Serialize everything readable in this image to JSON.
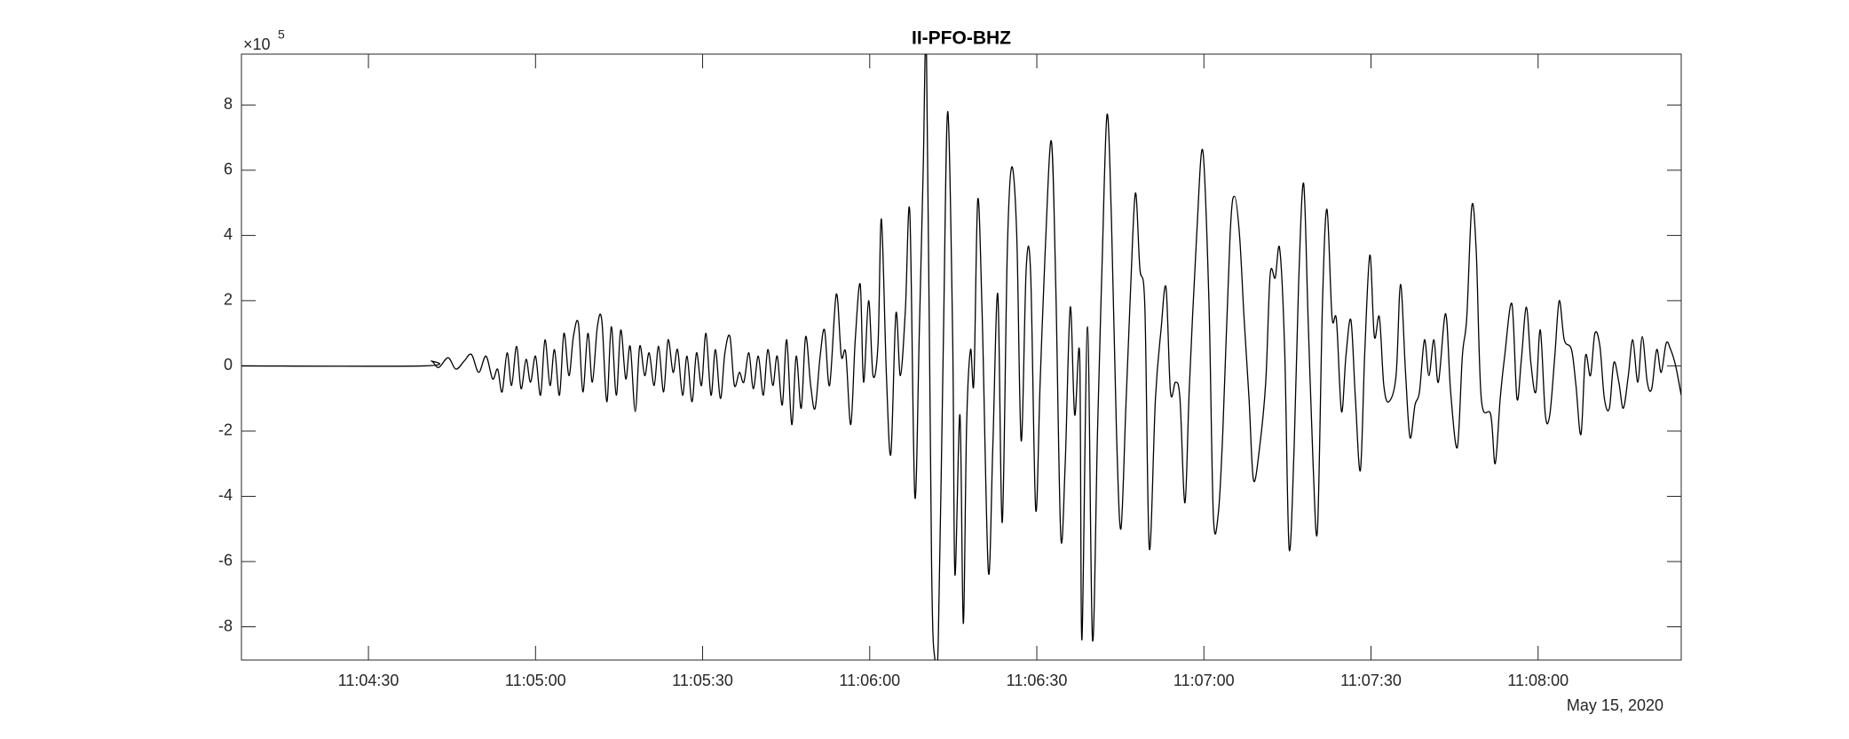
{
  "chart_data": {
    "type": "line",
    "title": "II-PFO-BHZ",
    "color": "#000000",
    "y_multiplier": "×10",
    "y_exponent": "5",
    "x_date_label": "May 15, 2020",
    "xlim": [
      "11:04:07.2",
      "11:08:25.7"
    ],
    "xticks": [
      "11:04:30",
      "11:05:00",
      "11:05:30",
      "11:06:00",
      "11:06:30",
      "11:07:00",
      "11:07:30",
      "11:08:00"
    ],
    "ylim": [
      -9.02,
      9.56
    ],
    "yticks": [
      -8,
      -6,
      -4,
      -2,
      0,
      2,
      4,
      6,
      8
    ],
    "x": [
      "11:04:07.2",
      "11:04:40.0",
      "11:04:41.3",
      "11:04:42.6",
      "11:04:44.3",
      "11:04:45.7",
      "11:04:47.2",
      "11:04:48.5",
      "11:04:49.8",
      "11:04:51.1",
      "11:04:52.3",
      "11:04:53.2",
      "11:04:54.0",
      "11:04:54.9",
      "11:04:55.7",
      "11:04:56.6",
      "11:04:57.4",
      "11:04:58.3",
      "11:04:59.1",
      "11:05:00.0",
      "11:05:00.9",
      "11:05:01.7",
      "11:05:02.6",
      "11:05:03.4",
      "11:05:04.3",
      "11:05:05.1",
      "11:05:06.0",
      "11:05:06.8",
      "11:05:07.7",
      "11:05:08.5",
      "11:05:09.4",
      "11:05:10.2",
      "11:05:11.1",
      "11:05:11.9",
      "11:05:12.8",
      "11:05:13.6",
      "11:05:14.5",
      "11:05:15.3",
      "11:05:16.2",
      "11:05:17.0",
      "11:05:17.9",
      "11:05:18.7",
      "11:05:19.6",
      "11:05:20.4",
      "11:05:21.3",
      "11:05:22.1",
      "11:05:23.0",
      "11:05:23.8",
      "11:05:24.7",
      "11:05:25.5",
      "11:05:26.4",
      "11:05:27.2",
      "11:05:28.1",
      "11:05:28.9",
      "11:05:29.8",
      "11:05:30.6",
      "11:05:31.5",
      "11:05:32.3",
      "11:05:33.2",
      "11:05:34.0",
      "11:05:34.9",
      "11:05:35.7",
      "11:05:36.6",
      "11:05:37.4",
      "11:05:38.3",
      "11:05:39.1",
      "11:05:40.0",
      "11:05:40.9",
      "11:05:41.7",
      "11:05:42.6",
      "11:05:43.4",
      "11:05:44.3",
      "11:05:45.1",
      "11:05:46.0",
      "11:05:46.8",
      "11:05:47.7",
      "11:05:48.5",
      "11:05:49.4",
      "11:05:50.2",
      "11:05:51.1",
      "11:05:51.9",
      "11:05:52.8",
      "11:05:54.0",
      "11:05:54.9",
      "11:05:55.7",
      "11:05:56.6",
      "11:05:57.4",
      "11:05:58.3",
      "11:05:58.9",
      "11:05:59.8",
      "11:06:00.6",
      "11:06:01.5",
      "11:06:02.1",
      "11:06:03.0",
      "11:06:03.8",
      "11:06:04.7",
      "11:06:05.5",
      "11:06:06.4",
      "11:06:07.2",
      "11:06:08.1",
      "11:06:08.9",
      "11:06:09.6",
      "11:06:10.2",
      "11:06:11.1",
      "11:06:11.7",
      "11:06:12.3",
      "11:06:13.2",
      "11:06:14.0",
      "11:06:14.9",
      "11:06:15.3",
      "11:06:16.2",
      "11:06:16.8",
      "11:06:17.4",
      "11:06:18.1",
      "11:06:18.7",
      "11:06:19.4",
      "11:06:20.2",
      "11:06:21.3",
      "11:06:22.1",
      "11:06:23.0",
      "11:06:23.8",
      "11:06:24.7",
      "11:06:25.5",
      "11:06:26.4",
      "11:06:27.2",
      "11:06:28.1",
      "11:06:28.9",
      "11:06:29.8",
      "11:06:30.6",
      "11:06:31.5",
      "11:06:32.6",
      "11:06:33.4",
      "11:06:34.3",
      "11:06:35.1",
      "11:06:36.0",
      "11:06:36.8",
      "11:06:37.7",
      "11:06:38.1",
      "11:06:39.1",
      "11:06:40.0",
      "11:06:40.9",
      "11:06:41.7",
      "11:06:42.6",
      "11:06:43.4",
      "11:06:44.3",
      "11:06:45.1",
      "11:06:46.0",
      "11:06:46.8",
      "11:06:47.7",
      "11:06:48.5",
      "11:06:49.4",
      "11:06:50.2",
      "11:06:51.3",
      "11:06:52.3",
      "11:06:53.2",
      "11:06:54.0",
      "11:06:54.9",
      "11:06:55.7",
      "11:06:56.6",
      "11:06:57.4",
      "11:06:58.7",
      "11:06:59.8",
      "11:07:00.9",
      "11:07:01.7",
      "11:07:02.6",
      "11:07:03.4",
      "11:07:04.7",
      "11:07:05.5",
      "11:07:06.4",
      "11:07:07.2",
      "11:07:08.1",
      "11:07:08.9",
      "11:07:10.0",
      "11:07:11.1",
      "11:07:11.9",
      "11:07:12.8",
      "11:07:13.6",
      "11:07:14.5",
      "11:07:15.3",
      "11:07:16.2",
      "11:07:17.0",
      "11:07:17.9",
      "11:07:18.7",
      "11:07:19.6",
      "11:07:20.4",
      "11:07:21.3",
      "11:07:22.1",
      "11:07:23.0",
      "11:07:23.8",
      "11:07:24.7",
      "11:07:25.5",
      "11:07:26.4",
      "11:07:27.2",
      "11:07:28.1",
      "11:07:28.9",
      "11:07:29.8",
      "11:07:30.6",
      "11:07:31.5",
      "11:07:32.3",
      "11:07:33.2",
      "11:07:34.5",
      "11:07:35.3",
      "11:07:36.2",
      "11:07:37.0",
      "11:07:37.9",
      "11:07:38.7",
      "11:07:39.6",
      "11:07:40.4",
      "11:07:41.3",
      "11:07:42.1",
      "11:07:43.4",
      "11:07:44.3",
      "11:07:45.5",
      "11:07:46.4",
      "11:07:47.2",
      "11:07:48.1",
      "11:07:48.9",
      "11:07:49.8",
      "11:07:51.5",
      "11:07:52.3",
      "11:07:53.2",
      "11:07:54.0",
      "11:07:55.3",
      "11:07:56.2",
      "11:07:57.0",
      "11:07:57.9",
      "11:07:58.7",
      "11:07:59.6",
      "11:08:00.4",
      "11:08:01.3",
      "11:08:02.1",
      "11:08:03.0",
      "11:08:03.8",
      "11:08:04.7",
      "11:08:06.0",
      "11:08:06.8",
      "11:08:07.7",
      "11:08:08.5",
      "11:08:09.4",
      "11:08:10.2",
      "11:08:11.1",
      "11:08:11.9",
      "11:08:12.8",
      "11:08:13.6",
      "11:08:14.5",
      "11:08:15.3",
      "11:08:16.2",
      "11:08:17.0",
      "11:08:17.9",
      "11:08:18.7",
      "11:08:19.6",
      "11:08:20.4",
      "11:08:21.3",
      "11:08:22.1",
      "11:08:23.0",
      "11:08:23.8",
      "11:08:24.7",
      "11:08:25.7"
    ],
    "values": [
      0,
      0,
      0.15,
      -0.05,
      0.25,
      -0.1,
      0.15,
      0.35,
      -0.2,
      0.3,
      -0.4,
      -0.1,
      -0.8,
      0.4,
      -0.6,
      0.6,
      -0.7,
      0.2,
      -0.5,
      0.3,
      -0.9,
      0.8,
      -0.6,
      0.5,
      -0.9,
      1.0,
      -0.3,
      0.9,
      1.3,
      -0.8,
      1.0,
      -0.5,
      1.2,
      1.4,
      -1.1,
      1.2,
      -0.9,
      1.1,
      -0.4,
      0.6,
      -1.4,
      0.6,
      -0.3,
      0.4,
      -0.6,
      0.6,
      -0.8,
      0.8,
      -0.2,
      0.5,
      -0.9,
      0.3,
      -1.1,
      0.4,
      -0.6,
      1.0,
      -0.9,
      0.5,
      -1.0,
      0.4,
      0.9,
      -0.6,
      -0.2,
      -0.5,
      0.4,
      -0.7,
      0.3,
      -0.9,
      0.5,
      -0.6,
      0.3,
      -1.2,
      0.8,
      -1.8,
      0.3,
      -1.3,
      0.9,
      -0.6,
      -1.3,
      0.3,
      1.1,
      -0.6,
      2.2,
      0.3,
      0.4,
      -1.8,
      0.8,
      2.5,
      -0.5,
      2.0,
      -0.3,
      0.7,
      4.5,
      -0.3,
      -2.7,
      1.6,
      -0.3,
      1.7,
      4.7,
      -4.0,
      1.0,
      6.0,
      9.5,
      -6,
      -9.0,
      -8.5,
      0.5,
      7.8,
      0.8,
      -6.4,
      -1.5,
      -7.9,
      -1.8,
      0.5,
      -0.5,
      5.1,
      1.5,
      -6.3,
      -2.5,
      2.2,
      -4.8,
      3.5,
      6.1,
      4.0,
      -2.3,
      3.0,
      2.8,
      -4.4,
      -0.5,
      3.5,
      6.9,
      2.5,
      -5.2,
      -3,
      1.8,
      -1.5,
      0.3,
      -8.4,
      1.2,
      -8.4,
      -2,
      3.0,
      7.7,
      4.5,
      -2.0,
      -5.0,
      -1.2,
      2.2,
      5.3,
      3,
      1.8,
      -5.6,
      -1.0,
      1.1,
      2.4,
      -0.8,
      -0.5,
      -1.0,
      -4.2,
      -0.6,
      4.0,
      6.6,
      2.0,
      -4.6,
      -4.5,
      -2.0,
      4.0,
      5.2,
      4.0,
      1.5,
      -1.0,
      -3.5,
      -2.5,
      -0.5,
      2.8,
      2.7,
      3.6,
      0.5,
      -5.6,
      -2.5,
      2.5,
      5.6,
      1.5,
      -3.0,
      -5.0,
      2.0,
      4.8,
      1.5,
      1.4,
      -1.4,
      0.3,
      1.4,
      -1.0,
      -3.2,
      0.5,
      3.4,
      0.9,
      1.5,
      -0.6,
      -1.1,
      -0.3,
      2.5,
      -0.2,
      -2.2,
      -1.2,
      -0.8,
      0.8,
      -0.3,
      0.8,
      -0.5,
      1.6,
      -0.8,
      -2.5,
      0.3,
      1.5,
      4.9,
      3.5,
      -1,
      -1.5,
      -3.0,
      -1.0,
      0.3,
      1.9,
      -1.0,
      0.2,
      1.8,
      0.1,
      -0.8,
      1.1,
      -1.5,
      -1.5,
      0.3,
      2.0,
      0.8,
      0.5,
      -0.6,
      -2.1,
      0.3,
      -0.3,
      1.0,
      0.6,
      -1.0,
      -1.3,
      0.1,
      -0.5,
      -1.3,
      -0.3,
      0.8,
      -0.5,
      0.9,
      -0.5,
      -0.7,
      0.5,
      -0.2,
      0.7,
      0.5,
      0.0,
      -0.9
    ]
  }
}
